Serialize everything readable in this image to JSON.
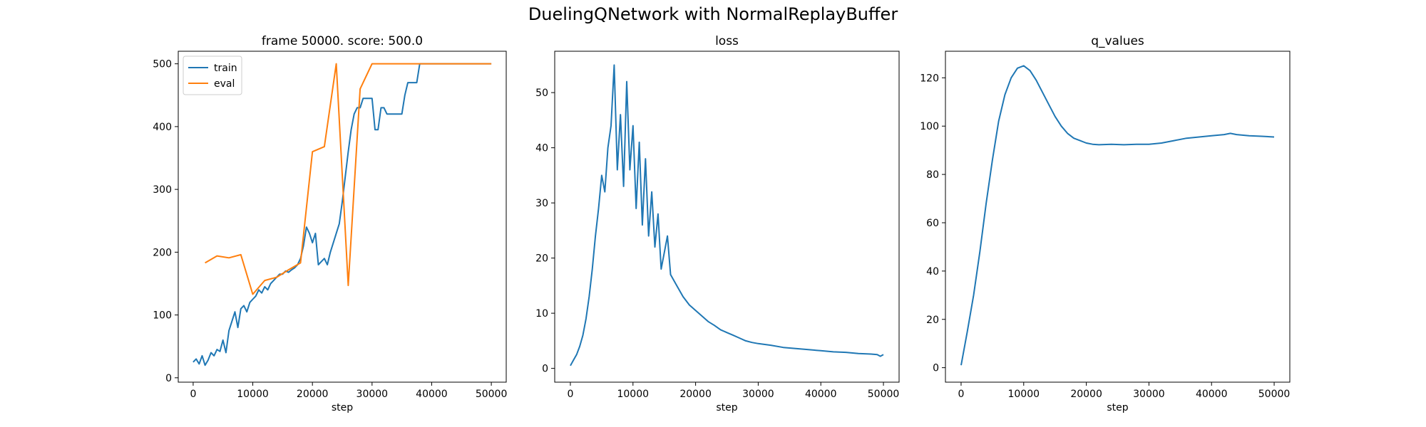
{
  "figure": {
    "suptitle": "DuelingQNetwork with NormalReplayBuffer"
  },
  "chart_data": [
    {
      "type": "line",
      "title": "frame 50000. score: 500.0",
      "xlabel": "step",
      "ylabel": "",
      "xlim": [
        -2500,
        52500
      ],
      "ylim": [
        -7,
        520
      ],
      "xticks": [
        0,
        10000,
        20000,
        30000,
        40000,
        50000
      ],
      "yticks": [
        0,
        100,
        200,
        300,
        400,
        500
      ],
      "legend": "top-left",
      "series": [
        {
          "name": "train",
          "color": "#1f77b4",
          "x": [
            0,
            500,
            1000,
            1500,
            2000,
            2500,
            3000,
            3500,
            4000,
            4500,
            5000,
            5500,
            6000,
            6500,
            7000,
            7500,
            8000,
            8500,
            9000,
            9500,
            10000,
            10500,
            11000,
            11500,
            12000,
            12500,
            13000,
            13500,
            14000,
            14500,
            15000,
            15500,
            16000,
            16500,
            17000,
            17500,
            18000,
            18500,
            19000,
            19500,
            20000,
            20500,
            21000,
            21500,
            22000,
            22500,
            23000,
            23500,
            24000,
            24500,
            25000,
            25500,
            26000,
            26500,
            27000,
            27500,
            28000,
            28500,
            29000,
            29500,
            30000,
            30500,
            31000,
            31500,
            32000,
            32500,
            33000,
            33500,
            34000,
            34500,
            35000,
            35500,
            36000,
            36500,
            37000,
            37500,
            38000,
            38500,
            39000,
            40000,
            45000,
            50000
          ],
          "y": [
            25,
            30,
            22,
            35,
            20,
            28,
            40,
            35,
            45,
            42,
            60,
            40,
            75,
            90,
            105,
            80,
            110,
            115,
            105,
            120,
            125,
            130,
            140,
            135,
            145,
            140,
            150,
            155,
            160,
            165,
            165,
            170,
            168,
            172,
            175,
            180,
            190,
            210,
            240,
            230,
            215,
            230,
            180,
            185,
            190,
            180,
            200,
            215,
            230,
            245,
            280,
            320,
            360,
            395,
            420,
            430,
            430,
            445,
            445,
            445,
            445,
            395,
            395,
            430,
            430,
            420,
            420,
            420,
            420,
            420,
            420,
            450,
            470,
            470,
            470,
            470,
            500,
            500,
            500,
            500,
            500,
            500
          ]
        },
        {
          "name": "eval",
          "color": "#ff7f0e",
          "x": [
            2000,
            4000,
            6000,
            8000,
            10000,
            12000,
            14000,
            16000,
            18000,
            20000,
            22000,
            24000,
            26000,
            28000,
            30000,
            32000,
            34000,
            36000,
            38000,
            40000,
            42000,
            44000,
            46000,
            48000,
            50000
          ],
          "y": [
            183,
            194,
            191,
            196,
            133,
            155,
            160,
            172,
            183,
            360,
            368,
            500,
            147,
            460,
            500,
            500,
            500,
            500,
            500,
            500,
            500,
            500,
            500,
            500,
            500
          ]
        }
      ]
    },
    {
      "type": "line",
      "title": "loss",
      "xlabel": "step",
      "ylabel": "",
      "xlim": [
        -2500,
        52500
      ],
      "ylim": [
        -2.5,
        57.5
      ],
      "xticks": [
        0,
        10000,
        20000,
        30000,
        40000,
        50000
      ],
      "yticks": [
        0,
        10,
        20,
        30,
        40,
        50
      ],
      "series": [
        {
          "color": "#1f77b4",
          "x": [
            0,
            500,
            1000,
            1500,
            2000,
            2500,
            3000,
            3500,
            4000,
            4500,
            5000,
            5500,
            6000,
            6500,
            7000,
            7500,
            8000,
            8500,
            9000,
            9500,
            10000,
            10500,
            11000,
            11500,
            12000,
            12500,
            13000,
            13500,
            14000,
            14500,
            15000,
            15500,
            16000,
            17000,
            18000,
            19000,
            20000,
            21000,
            22000,
            23000,
            24000,
            25000,
            26000,
            27000,
            28000,
            29000,
            30000,
            32000,
            34000,
            36000,
            38000,
            40000,
            42000,
            44000,
            46000,
            48000,
            49000,
            49500,
            50000
          ],
          "y": [
            0.5,
            1.5,
            2.5,
            4,
            6,
            9,
            13,
            18,
            24,
            29,
            35,
            32,
            40,
            44,
            55,
            36,
            46,
            33,
            52,
            36,
            44,
            29,
            41,
            26,
            38,
            24,
            32,
            22,
            28,
            18,
            21,
            24,
            17,
            15,
            13,
            11.5,
            10.5,
            9.5,
            8.5,
            7.8,
            7,
            6.5,
            6,
            5.5,
            5,
            4.7,
            4.5,
            4.2,
            3.8,
            3.6,
            3.4,
            3.2,
            3,
            2.9,
            2.7,
            2.6,
            2.5,
            2.2,
            2.5
          ]
        }
      ]
    },
    {
      "type": "line",
      "title": "q_values",
      "xlabel": "step",
      "ylabel": "",
      "xlim": [
        -2500,
        52500
      ],
      "ylim": [
        -6,
        131
      ],
      "xticks": [
        0,
        10000,
        20000,
        30000,
        40000,
        50000
      ],
      "yticks": [
        0,
        20,
        40,
        60,
        80,
        100,
        120
      ],
      "series": [
        {
          "color": "#1f77b4",
          "x": [
            0,
            1000,
            2000,
            3000,
            4000,
            5000,
            6000,
            7000,
            8000,
            9000,
            10000,
            11000,
            12000,
            13000,
            14000,
            15000,
            16000,
            17000,
            18000,
            19000,
            20000,
            21000,
            22000,
            24000,
            26000,
            28000,
            30000,
            32000,
            34000,
            36000,
            38000,
            40000,
            42000,
            43000,
            44000,
            46000,
            48000,
            50000
          ],
          "y": [
            1,
            15,
            30,
            48,
            68,
            86,
            102,
            113,
            120,
            124,
            125,
            123,
            119,
            114,
            109,
            104,
            100,
            97,
            95,
            94,
            93,
            92.5,
            92.3,
            92.5,
            92.3,
            92.5,
            92.5,
            93,
            94,
            95,
            95.5,
            96,
            96.5,
            97,
            96.5,
            96,
            95.8,
            95.5
          ]
        }
      ]
    }
  ]
}
